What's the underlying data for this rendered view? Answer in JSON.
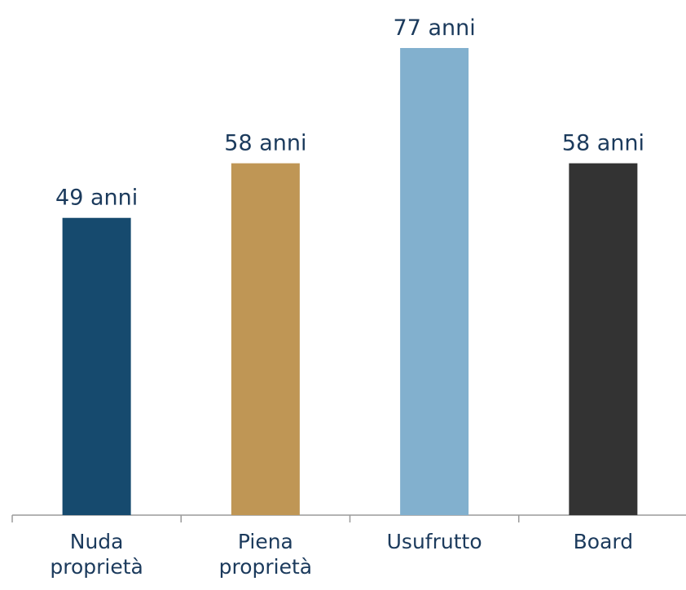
{
  "chart_data": {
    "type": "bar",
    "categories": [
      "Nuda proprietà",
      "Piena proprietà",
      "Usufrutto",
      "Board"
    ],
    "values": [
      49,
      58,
      77,
      58
    ],
    "value_labels": [
      "49 anni",
      "58 anni",
      "77 anni",
      "58 anni"
    ],
    "colors": [
      "#164a6e",
      "#bf9655",
      "#82b0ce",
      "#333333"
    ]
  }
}
